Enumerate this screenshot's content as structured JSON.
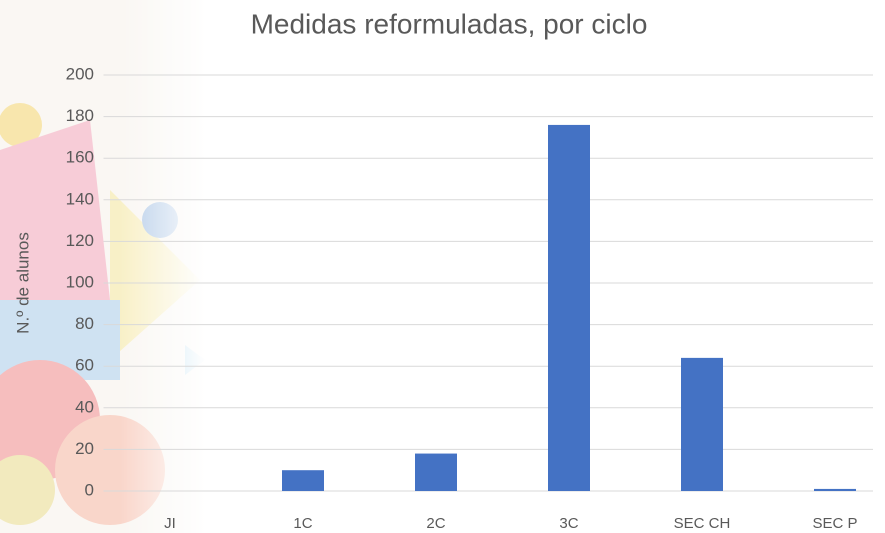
{
  "chart_data": {
    "type": "bar",
    "title": "Medidas reformuladas, por ciclo",
    "y_label": "N.º de alunos",
    "categories": [
      "JI",
      "1C",
      "2C",
      "3C",
      "SEC CH",
      "SEC P"
    ],
    "values": [
      0,
      10,
      18,
      176,
      64,
      1
    ],
    "color": "#4472c4",
    "ylim": [
      0,
      200
    ],
    "yticks": [
      0,
      20,
      40,
      60,
      80,
      100,
      120,
      140,
      160,
      180,
      200
    ],
    "grid": true
  }
}
